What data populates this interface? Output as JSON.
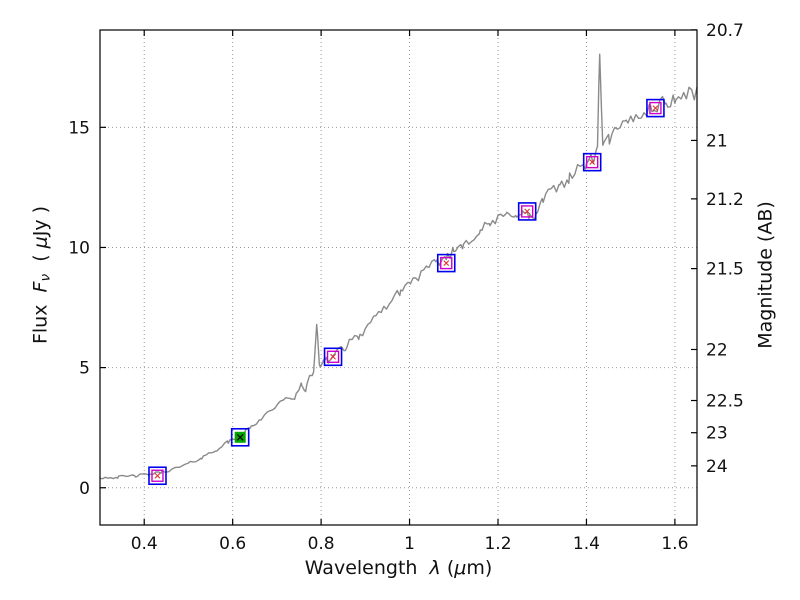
{
  "labels": {
    "xlabel_segments": [
      {
        "t": "Wavelength  "
      },
      {
        "t": "λ",
        "i": true
      },
      {
        "t": " ("
      },
      {
        "t": "μ",
        "i": true
      },
      {
        "t": "m)"
      }
    ],
    "ylabel_left_segments": [
      {
        "t": "Flux  "
      },
      {
        "t": "F",
        "i": true
      },
      {
        "t": "ν",
        "i": true,
        "sub": true
      },
      {
        "t": "  ( "
      },
      {
        "t": "μ",
        "i": true
      },
      {
        "t": "Jy )"
      }
    ],
    "ylabel_right": "Magnitude (AB)"
  },
  "chart_data": {
    "type": "line",
    "title": "",
    "xlabel": "Wavelength λ (μm)",
    "ylabel_left": "Flux Fν ( μJy )",
    "ylabel_right": "Magnitude (AB)",
    "xlim": [
      0.3,
      1.65
    ],
    "ylim_flux": [
      -1.55,
      19.05
    ],
    "grid": {
      "show": true,
      "style": "dotted",
      "color": "#999999"
    },
    "xticks": [
      {
        "v": 0.4,
        "label": "0.4"
      },
      {
        "v": 0.6,
        "label": "0.6"
      },
      {
        "v": 0.8,
        "label": "0.8"
      },
      {
        "v": 1.0,
        "label": "1"
      },
      {
        "v": 1.2,
        "label": "1.2"
      },
      {
        "v": 1.4,
        "label": "1.4"
      },
      {
        "v": 1.6,
        "label": "1.6"
      }
    ],
    "yticks_flux": [
      {
        "v": 0,
        "label": "0"
      },
      {
        "v": 5,
        "label": "5"
      },
      {
        "v": 10,
        "label": "10"
      },
      {
        "v": 15,
        "label": "15"
      }
    ],
    "mag_zeropoint": 23.9,
    "yticks_mag": [
      {
        "mag": 20.7,
        "label": "20.7"
      },
      {
        "mag": 21.0,
        "label": "21"
      },
      {
        "mag": 21.2,
        "label": "21.2"
      },
      {
        "mag": 21.5,
        "label": "21.5"
      },
      {
        "mag": 22.0,
        "label": "22"
      },
      {
        "mag": 22.5,
        "label": "22.5"
      },
      {
        "mag": 23.0,
        "label": "23"
      },
      {
        "mag": 24.0,
        "label": "24"
      }
    ],
    "spectrum": {
      "name": "galaxy-spectrum",
      "color": "#8a8a8a",
      "width": 1.4,
      "anchors": [
        [
          0.3,
          0.42
        ],
        [
          0.34,
          0.44
        ],
        [
          0.38,
          0.5
        ],
        [
          0.41,
          0.55
        ],
        [
          0.44,
          0.65
        ],
        [
          0.47,
          0.8
        ],
        [
          0.5,
          1.0
        ],
        [
          0.53,
          1.25
        ],
        [
          0.56,
          1.55
        ],
        [
          0.59,
          1.9
        ],
        [
          0.617,
          2.15
        ],
        [
          0.64,
          2.5
        ],
        [
          0.665,
          2.9
        ],
        [
          0.69,
          3.3
        ],
        [
          0.71,
          3.55
        ],
        [
          0.73,
          3.8
        ],
        [
          0.74,
          3.65
        ],
        [
          0.755,
          4.3
        ],
        [
          0.765,
          4.1
        ],
        [
          0.775,
          4.6
        ],
        [
          0.783,
          4.85
        ],
        [
          0.79,
          6.8
        ],
        [
          0.796,
          5.05
        ],
        [
          0.805,
          5.3
        ],
        [
          0.812,
          5.45
        ],
        [
          0.818,
          5.25
        ],
        [
          0.83,
          5.6
        ],
        [
          0.845,
          5.85
        ],
        [
          0.855,
          5.75
        ],
        [
          0.87,
          6.25
        ],
        [
          0.885,
          6.15
        ],
        [
          0.9,
          6.7
        ],
        [
          0.92,
          7.0
        ],
        [
          0.94,
          7.45
        ],
        [
          0.96,
          7.8
        ],
        [
          0.98,
          8.2
        ],
        [
          1.0,
          8.55
        ],
        [
          1.02,
          8.8
        ],
        [
          1.04,
          9.1
        ],
        [
          1.06,
          9.35
        ],
        [
          1.083,
          9.6
        ],
        [
          1.1,
          9.85
        ],
        [
          1.12,
          10.15
        ],
        [
          1.14,
          10.4
        ],
        [
          1.16,
          10.7
        ],
        [
          1.18,
          10.95
        ],
        [
          1.2,
          11.15
        ],
        [
          1.22,
          11.35
        ],
        [
          1.24,
          11.45
        ],
        [
          1.255,
          11.4
        ],
        [
          1.27,
          11.3
        ],
        [
          1.285,
          11.25
        ],
        [
          1.3,
          11.95
        ],
        [
          1.32,
          12.3
        ],
        [
          1.34,
          12.6
        ],
        [
          1.36,
          12.9
        ],
        [
          1.38,
          13.2
        ],
        [
          1.4,
          13.5
        ],
        [
          1.415,
          13.7
        ],
        [
          1.425,
          13.95
        ],
        [
          1.43,
          18.3
        ],
        [
          1.437,
          14.1
        ],
        [
          1.45,
          14.5
        ],
        [
          1.47,
          14.85
        ],
        [
          1.49,
          15.15
        ],
        [
          1.51,
          15.45
        ],
        [
          1.53,
          15.65
        ],
        [
          1.545,
          15.8
        ],
        [
          1.56,
          15.9
        ],
        [
          1.58,
          16.05
        ],
        [
          1.6,
          16.15
        ],
        [
          1.625,
          16.35
        ],
        [
          1.65,
          16.45
        ]
      ],
      "noise": {
        "seed": 42,
        "base": 0.05,
        "scale": 0.016,
        "step": 0.006
      }
    },
    "photometry": {
      "outer_color": "#0000ee",
      "inner_color": "#cc00cc",
      "model_color": "#e03030",
      "highlight_color": "#00a800",
      "outer_size": 17,
      "inner_size": 11,
      "points": [
        {
          "x": 0.43,
          "flux": 0.5
        },
        {
          "x": 0.617,
          "flux": 2.1,
          "highlight": true
        },
        {
          "x": 0.827,
          "flux": 5.45
        },
        {
          "x": 1.083,
          "flux": 9.35
        },
        {
          "x": 1.266,
          "flux": 11.5
        },
        {
          "x": 1.413,
          "flux": 13.55
        },
        {
          "x": 1.556,
          "flux": 15.8
        }
      ]
    }
  }
}
